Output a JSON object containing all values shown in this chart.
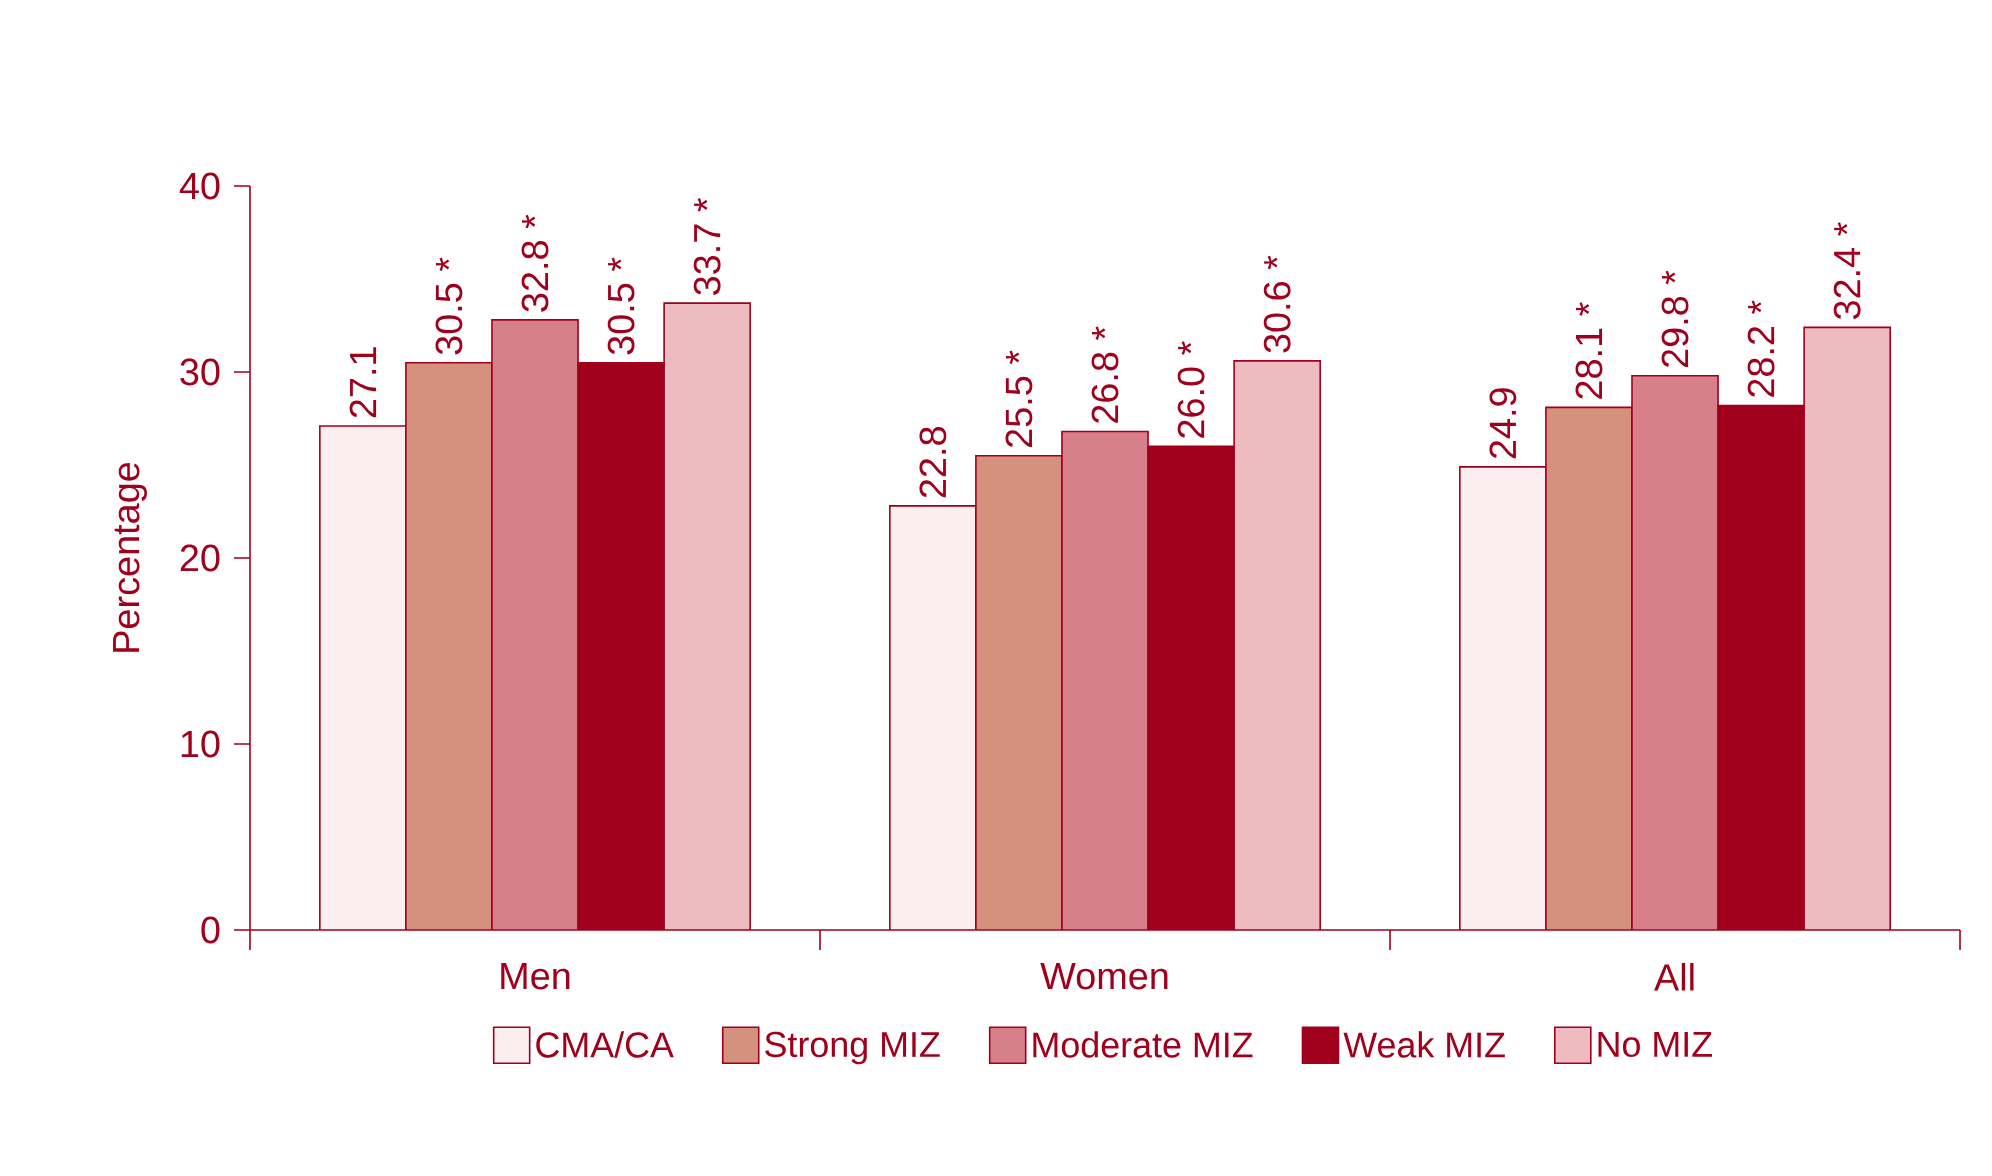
{
  "chart_data": {
    "type": "bar",
    "ylabel": "Percentage",
    "categories": [
      "Men",
      "Women",
      "All"
    ],
    "ylim": [
      0,
      40
    ],
    "yticks": [
      0,
      10,
      20,
      30,
      40
    ],
    "grid": false,
    "legend": "bottom",
    "series": [
      {
        "name": "CMA/CA",
        "color": "#fbeef0",
        "values": [
          27.1,
          22.8,
          24.9
        ],
        "value_labels": [
          "27.1",
          "22.8",
          "24.9"
        ]
      },
      {
        "name": "Strong MIZ",
        "color": "#d4917e",
        "values": [
          30.5,
          25.5,
          28.1
        ],
        "value_labels": [
          "30.5 *",
          "25.5 *",
          "28.1 *"
        ]
      },
      {
        "name": "Moderate MIZ",
        "color": "#d77f8a",
        "values": [
          32.8,
          26.8,
          29.8
        ],
        "value_labels": [
          "32.8 *",
          "26.8 *",
          "29.8 *"
        ]
      },
      {
        "name": "Weak MIZ",
        "color": "#a0001c",
        "values": [
          30.5,
          26.0,
          28.2
        ],
        "value_labels": [
          "30.5 *",
          "26.0 *",
          "28.2 *"
        ]
      },
      {
        "name": "No MIZ",
        "color": "#eebbc0",
        "values": [
          33.7,
          30.6,
          32.4
        ],
        "value_labels": [
          "33.7 *",
          "30.6 *",
          "32.4 *"
        ]
      }
    ]
  }
}
